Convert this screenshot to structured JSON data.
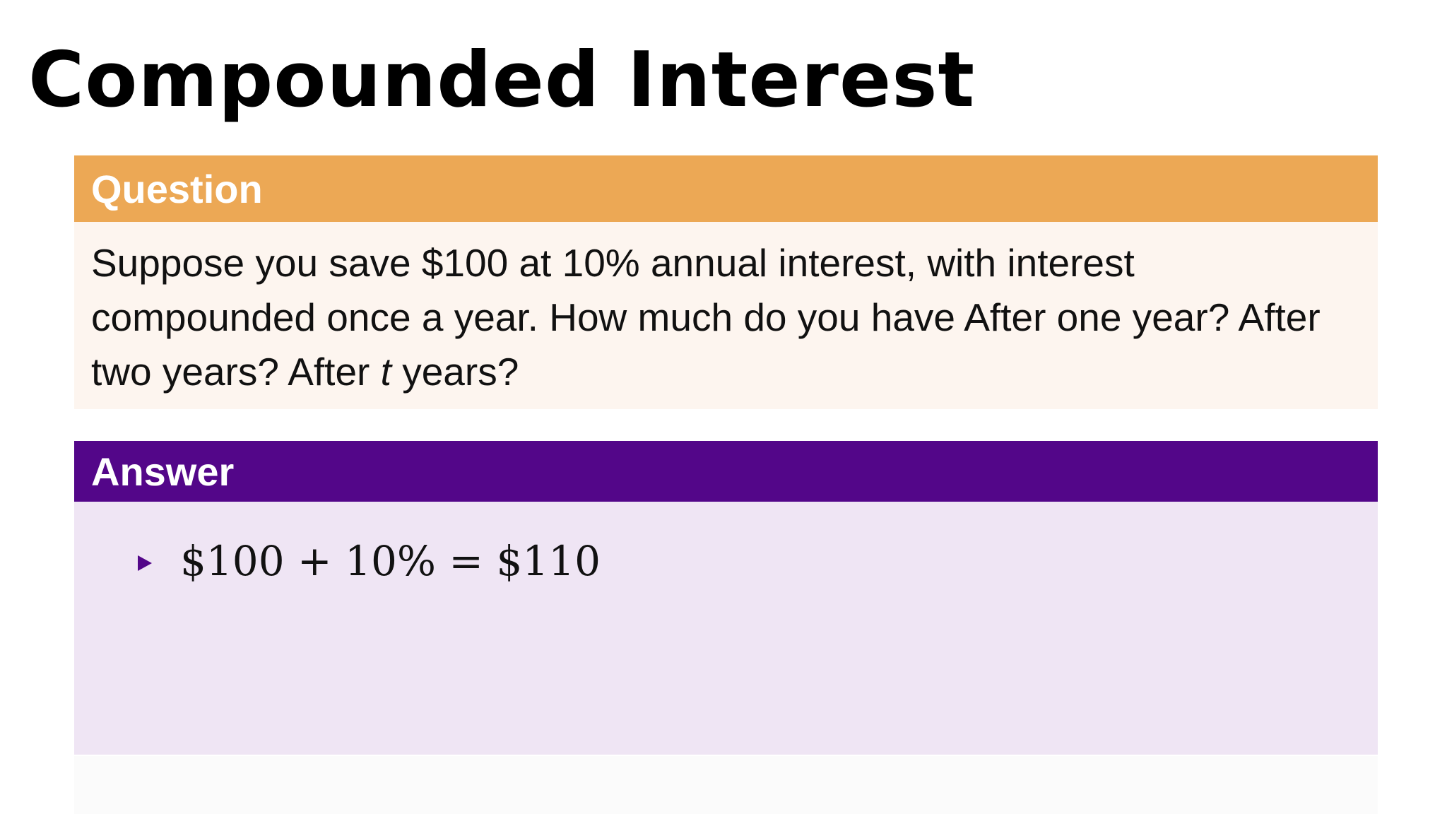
{
  "slide": {
    "title": "Compounded Interest"
  },
  "question": {
    "header": "Question",
    "text_before_var": "Suppose you save $100 at 10% annual interest, with interest compounded once a year. How much do you have After one year? After two years? After ",
    "variable": "t",
    "text_after_var": " years?"
  },
  "answer": {
    "header": "Answer",
    "items": [
      {
        "text": "$100 + 10% = $110"
      }
    ]
  },
  "colors": {
    "question_header": "#eca855",
    "question_body": "#fdf5ef",
    "answer_header": "#530689",
    "answer_body": "#efe5f4"
  }
}
